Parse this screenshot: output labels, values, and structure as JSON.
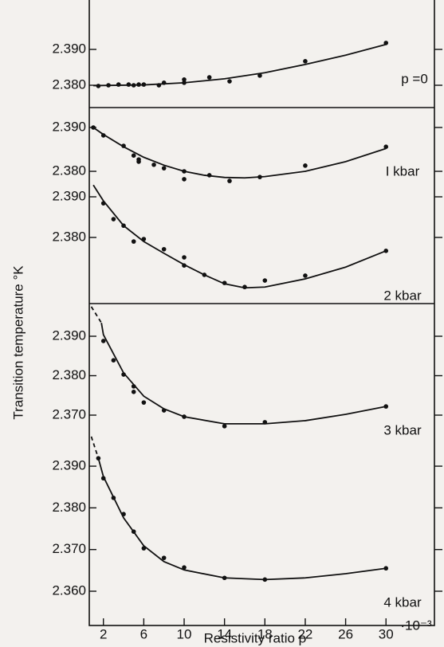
{
  "chart_data": [
    {
      "type": "scatter",
      "annotation": "p =0",
      "color": "#111",
      "x": [
        1.5,
        2.5,
        3.5,
        4.5,
        5,
        5.5,
        6,
        7.5,
        8,
        10,
        10,
        12.5,
        14.5,
        17.5,
        22,
        30
      ],
      "values": [
        2.3798,
        2.38,
        2.3802,
        2.3802,
        2.38,
        2.3802,
        2.3802,
        2.38,
        2.3807,
        2.3807,
        2.3816,
        2.3822,
        2.3811,
        2.3827,
        2.3867,
        2.3918
      ],
      "fit": {
        "x": [
          1,
          6,
          10,
          14,
          18,
          22,
          26,
          30
        ],
        "values": [
          2.3799,
          2.3801,
          2.3807,
          2.3818,
          2.3835,
          2.3858,
          2.3884,
          2.3914
        ]
      },
      "ylim": [
        2.376,
        2.393
      ],
      "yticks": [
        {
          "value": 2.38,
          "label": "2.380"
        },
        {
          "value": 2.39,
          "label": "2.390"
        }
      ]
    },
    {
      "type": "scatter",
      "annotation": "I kbar",
      "color": "#111",
      "x": [
        1,
        2,
        4,
        5,
        5.5,
        5.5,
        7,
        8,
        10,
        10,
        12.5,
        14.5,
        17.5,
        22,
        30
      ],
      "values": [
        2.39,
        2.3882,
        2.3858,
        2.3836,
        2.3827,
        2.3822,
        2.3815,
        2.3807,
        2.38,
        2.3782,
        2.3791,
        2.3778,
        2.3787,
        2.3813,
        2.3856
      ],
      "fit": {
        "x": [
          1,
          2,
          4,
          6,
          8,
          10,
          12,
          14,
          16,
          18,
          22,
          26,
          30
        ],
        "values": [
          2.39,
          2.3884,
          2.3856,
          2.3832,
          2.3814,
          2.38,
          2.3791,
          2.3786,
          2.3785,
          2.3788,
          2.38,
          2.3822,
          2.3852
        ]
      },
      "ylim": [
        2.377,
        2.391
      ],
      "yticks": [
        {
          "value": 2.38,
          "label": "2.380"
        },
        {
          "value": 2.39,
          "label": "2.390"
        }
      ]
    },
    {
      "type": "scatter",
      "annotation": "2 kbar",
      "color": "#111",
      "x": [
        2,
        3,
        4,
        5,
        6,
        8,
        10,
        10,
        12,
        14,
        16,
        18,
        22,
        30
      ],
      "values": [
        2.3884,
        2.3845,
        2.3829,
        2.379,
        2.3796,
        2.3771,
        2.3751,
        2.3731,
        2.3708,
        2.3688,
        2.3678,
        2.3694,
        2.3706,
        2.3767
      ],
      "fit": {
        "x": [
          1,
          2,
          4,
          6,
          8,
          10,
          12,
          14,
          16,
          18,
          22,
          26,
          30
        ],
        "values": [
          2.3929,
          2.389,
          2.3829,
          2.379,
          2.3761,
          2.3733,
          2.3708,
          2.3686,
          2.3676,
          2.3678,
          2.3698,
          2.3727,
          2.3767
        ]
      },
      "ylim": [
        2.366,
        2.394
      ],
      "yticks": [
        {
          "value": 2.38,
          "label": "2.380"
        },
        {
          "value": 2.39,
          "label": "2.390"
        }
      ]
    },
    {
      "type": "scatter",
      "annotation": "3 kbar",
      "color": "#111",
      "x": [
        2,
        3,
        4,
        5,
        5,
        6,
        8,
        10,
        14,
        18,
        30
      ],
      "values": [
        2.3888,
        2.3839,
        2.3803,
        2.3773,
        2.3759,
        2.3732,
        2.3712,
        2.3696,
        2.3672,
        2.3682,
        2.3722
      ],
      "fit": {
        "x": [
          1.8,
          2,
          4,
          6,
          8,
          10,
          14,
          18,
          22,
          26,
          30
        ],
        "values": [
          2.3934,
          2.3904,
          2.3807,
          2.3748,
          2.3716,
          2.3696,
          2.3678,
          2.3678,
          2.3686,
          2.3702,
          2.3722
        ]
      },
      "dashed": {
        "x": [
          0.8,
          1.8
        ],
        "values": [
          2.3975,
          2.3934
        ]
      },
      "ylim": [
        2.366,
        2.398
      ],
      "yticks": [
        {
          "value": 2.37,
          "label": "2.370"
        },
        {
          "value": 2.38,
          "label": "2.380"
        },
        {
          "value": 2.39,
          "label": "2.390"
        }
      ]
    },
    {
      "type": "scatter",
      "annotation": "4 kbar",
      "color": "#111",
      "x": [
        1.5,
        2,
        3,
        4,
        5,
        6,
        8,
        10,
        14,
        18,
        30
      ],
      "values": [
        2.3919,
        2.3871,
        2.3824,
        2.3785,
        2.3743,
        2.3703,
        2.368,
        2.3657,
        2.3632,
        2.3628,
        2.3655
      ],
      "fit": {
        "x": [
          1.5,
          2,
          4,
          6,
          8,
          10,
          14,
          18,
          22,
          26,
          30
        ],
        "values": [
          2.3919,
          2.3875,
          2.3776,
          2.3709,
          2.3671,
          2.3651,
          2.3632,
          2.3628,
          2.3632,
          2.3642,
          2.3655
        ]
      },
      "dashed": {
        "x": [
          0.8,
          1.5
        ],
        "values": [
          2.3971,
          2.3919
        ]
      },
      "ylim": [
        2.36,
        2.398
      ],
      "yticks": [
        {
          "value": 2.36,
          "label": "2.360"
        },
        {
          "value": 2.37,
          "label": "2.370"
        },
        {
          "value": 2.38,
          "label": "2.380"
        },
        {
          "value": 2.39,
          "label": "2.390"
        }
      ],
      "xlim": [
        0.6,
        34.8
      ],
      "xticks": [
        2,
        6,
        10,
        14,
        18,
        22,
        26,
        30
      ],
      "x_unit_label": "·10⁻³",
      "xlabel": "Resistivity ratio ρ",
      "ylabel": "Transition temperature °K"
    }
  ]
}
